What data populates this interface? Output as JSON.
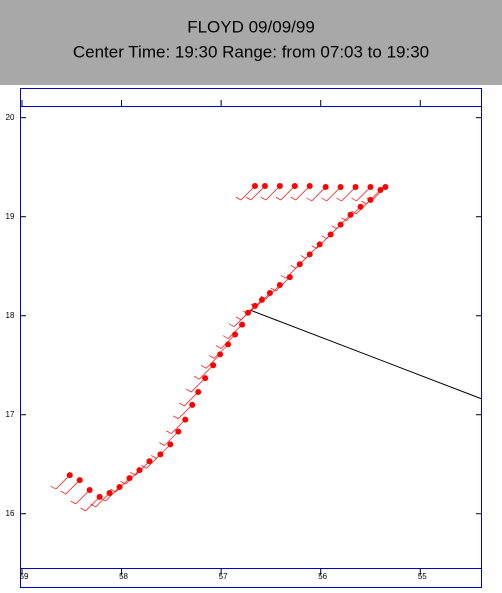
{
  "chart_data": {
    "type": "scatter",
    "title": "FLOYD 09/09/99",
    "subtitle": "Center Time: 19:30  Range: from 07:03 to 19:30",
    "color": "#ff0000",
    "x": [
      58.52,
      58.42,
      58.32,
      58.22,
      58.12,
      58.02,
      57.92,
      57.82,
      57.72,
      57.61,
      57.51,
      57.43,
      57.36,
      57.29,
      57.23,
      57.16,
      57.08,
      57.01,
      56.93,
      56.86,
      56.79,
      56.73,
      56.66,
      56.59,
      56.51,
      56.41,
      56.31,
      56.21,
      56.11,
      56.01,
      55.9,
      55.8,
      55.7,
      55.6,
      55.5,
      55.4,
      55.35,
      55.5,
      55.65,
      55.8,
      55.95,
      56.11,
      56.26,
      56.41,
      56.56,
      56.66
    ],
    "y": [
      16.39,
      16.34,
      16.24,
      16.17,
      16.21,
      16.27,
      16.36,
      16.44,
      16.53,
      16.6,
      16.7,
      16.83,
      16.95,
      17.1,
      17.23,
      17.37,
      17.5,
      17.61,
      17.71,
      17.81,
      17.91,
      18.03,
      18.1,
      18.16,
      18.23,
      18.31,
      18.39,
      18.52,
      18.62,
      18.72,
      18.82,
      18.92,
      19.02,
      19.1,
      19.17,
      19.27,
      19.3,
      19.3,
      19.3,
      19.3,
      19.3,
      19.31,
      19.31,
      19.31,
      19.31,
      19.31
    ],
    "xlim": [
      59.02,
      54.38
    ],
    "ylim": [
      15.25,
      20.3
    ],
    "xticks": [
      59,
      58,
      57,
      56,
      55
    ],
    "yticks": [
      16,
      17,
      18,
      19,
      20
    ]
  }
}
